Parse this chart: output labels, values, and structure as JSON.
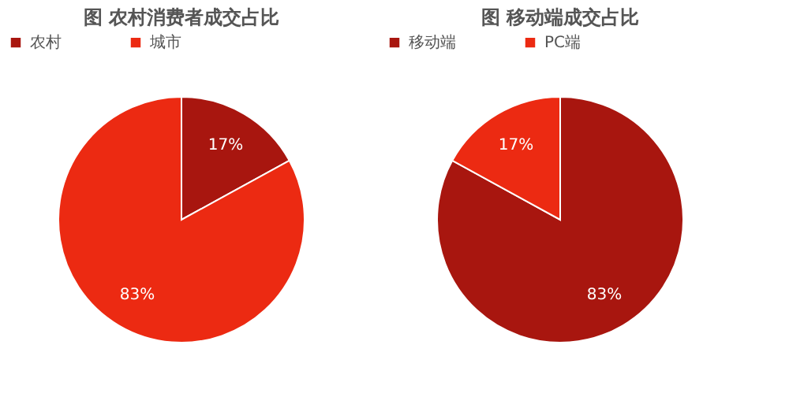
{
  "chart_data": [
    {
      "type": "pie",
      "title": "图 农村消费者成交占比",
      "categories": [
        "农村",
        "城市"
      ],
      "values": [
        17,
        83
      ],
      "value_labels": [
        "17%",
        "83%"
      ],
      "colors": [
        "#a8160f",
        "#ec2a12"
      ],
      "legend": "top"
    },
    {
      "type": "pie",
      "title": "图 移动端成交占比",
      "categories": [
        "移动端",
        "PC端"
      ],
      "values": [
        83,
        17
      ],
      "value_labels": [
        "83%",
        "17%"
      ],
      "colors": [
        "#a8160f",
        "#ec2a12"
      ],
      "legend": "top"
    }
  ]
}
